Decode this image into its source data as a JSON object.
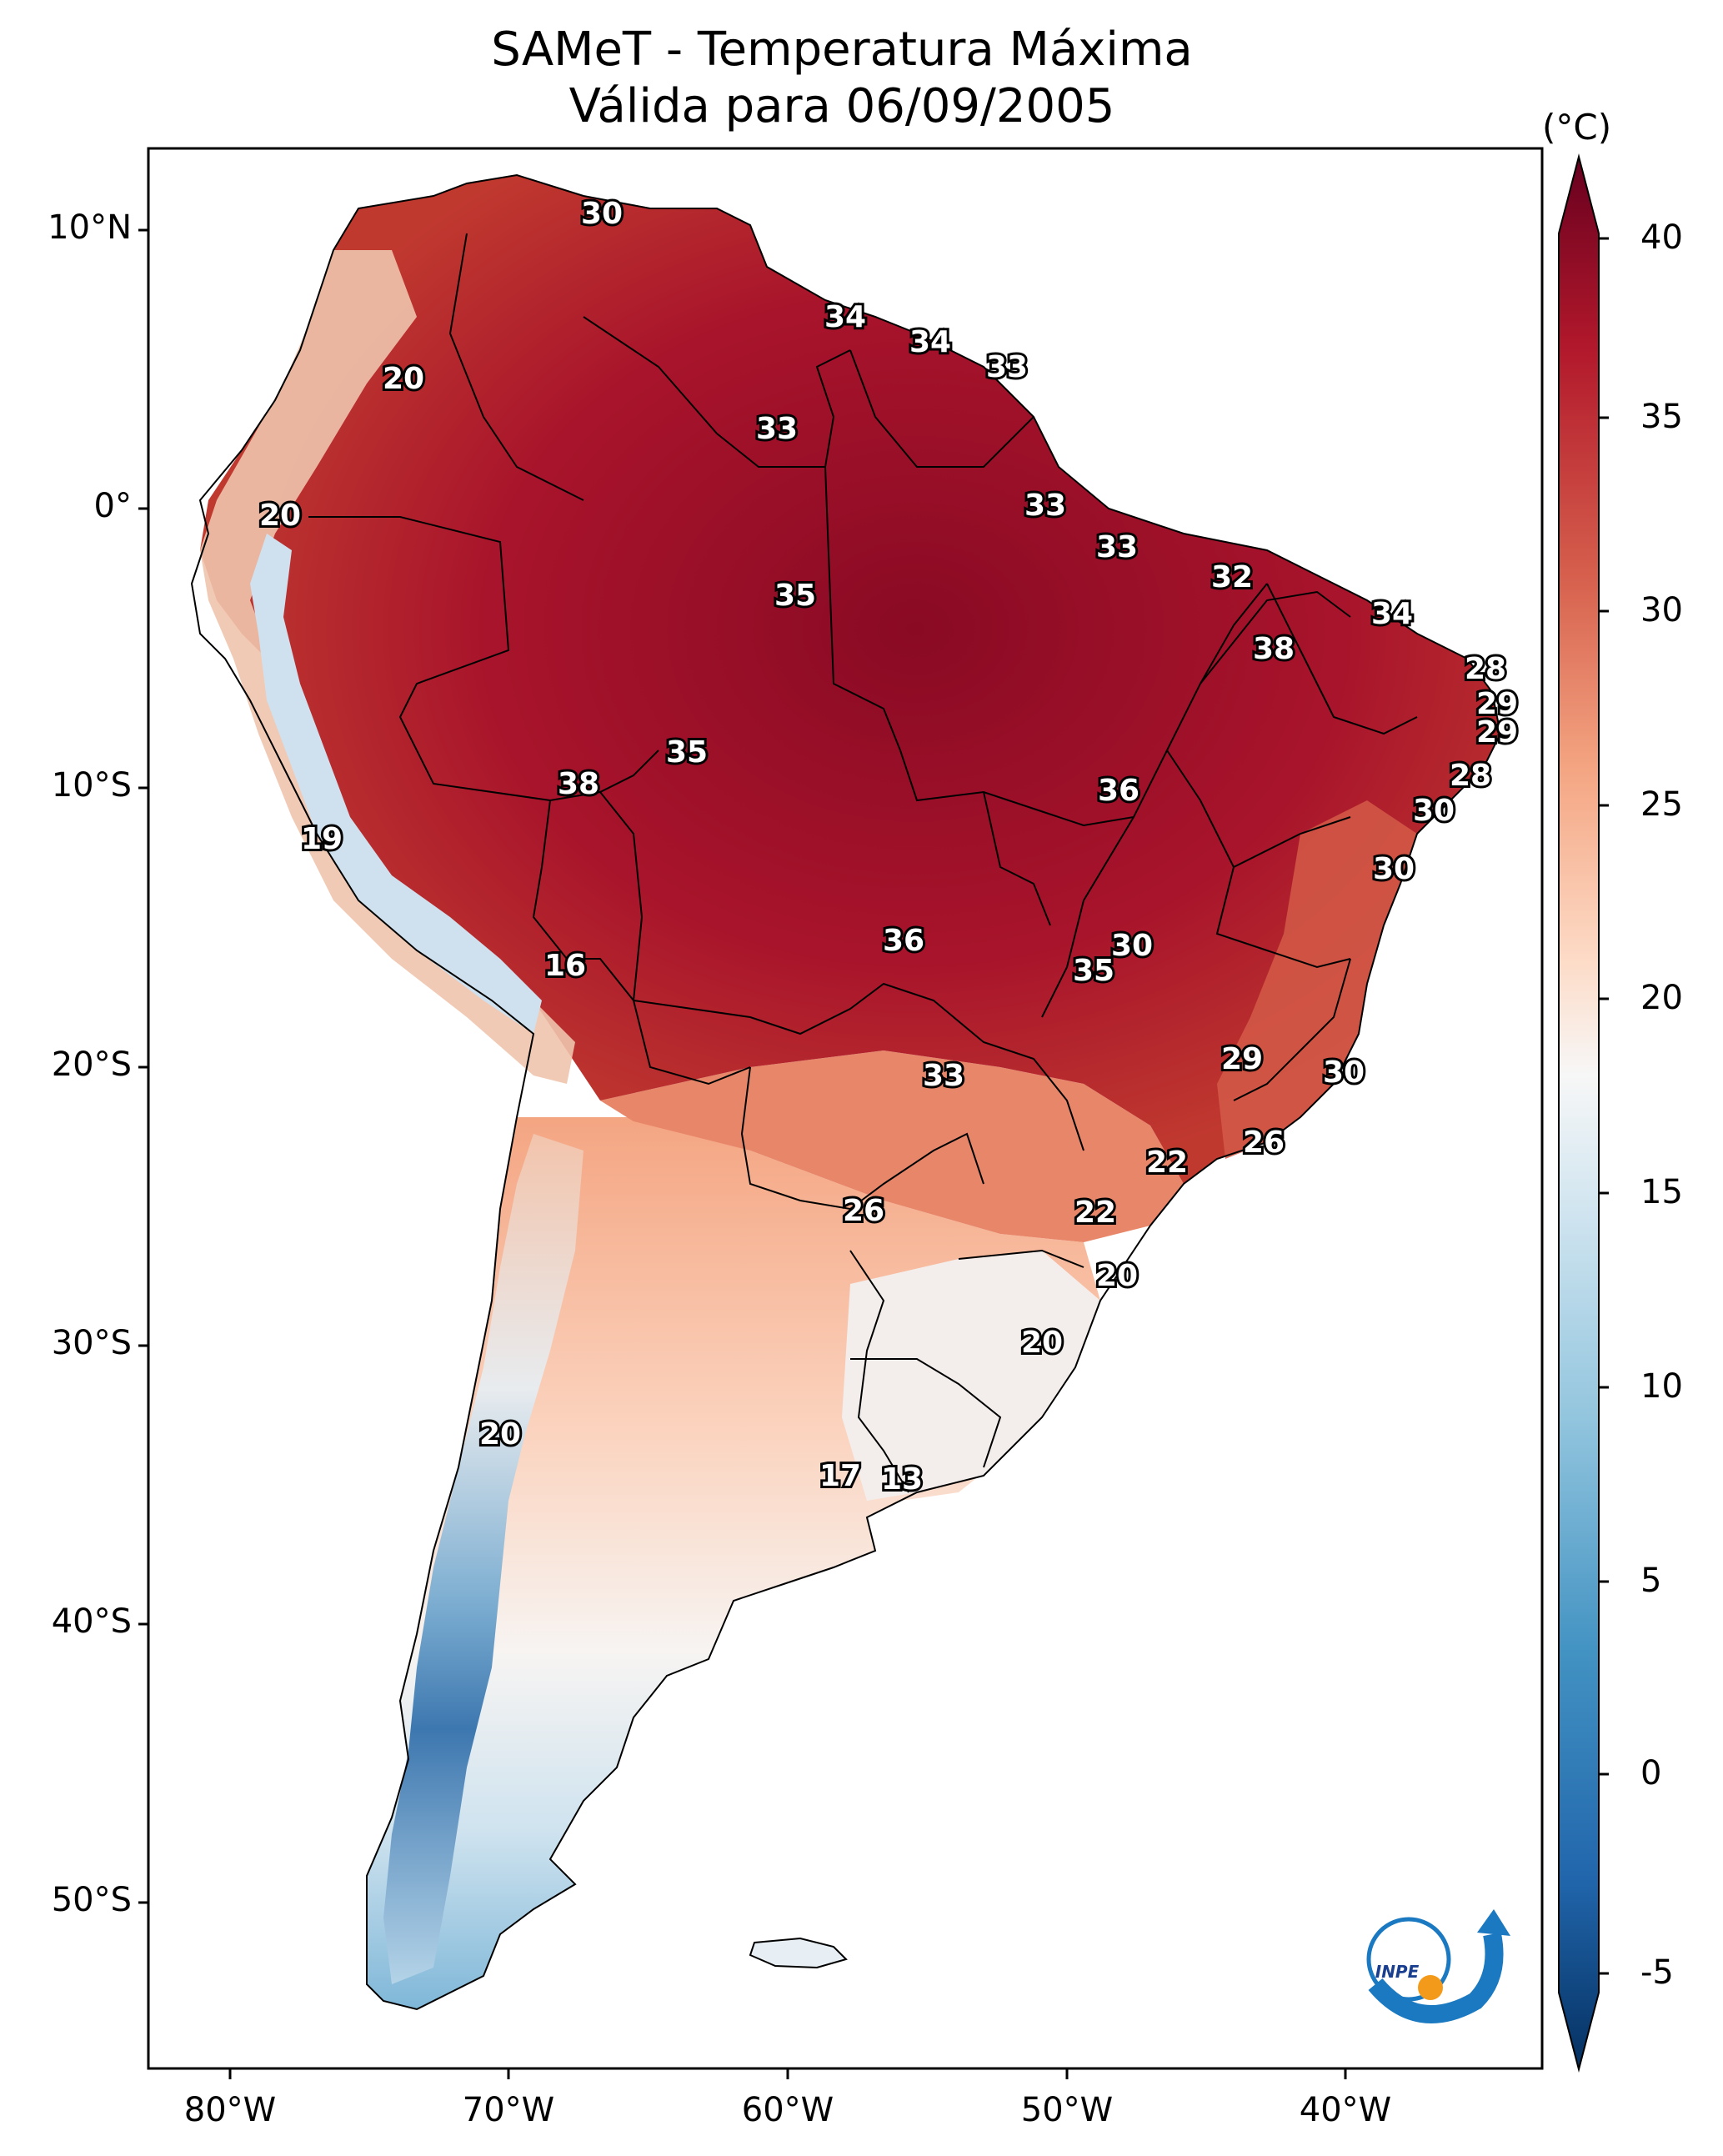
{
  "title": {
    "line1": "SAMeT - Temperatura Máxima",
    "line2": "Válida para 06/09/2005"
  },
  "colorbar": {
    "unit": "(°C)",
    "ticks": [
      "40",
      "35",
      "30",
      "25",
      "20",
      "15",
      "10",
      "5",
      "0",
      "-5"
    ],
    "colors": [
      "#67001f",
      "#b2182b",
      "#d6604d",
      "#f4a582",
      "#fddbc7",
      "#f7f7f7",
      "#d1e5f0",
      "#92c5de",
      "#4393c3",
      "#2166ac",
      "#053061"
    ]
  },
  "axes": {
    "lat_labels": [
      "10°N",
      "0°",
      "10°S",
      "20°S",
      "30°S",
      "40°S",
      "50°S"
    ],
    "lon_labels": [
      "80°W",
      "70°W",
      "60°W",
      "50°W",
      "40°W"
    ]
  },
  "isotherm_labels": [
    "30",
    "34",
    "34",
    "33",
    "20",
    "33",
    "20",
    "33",
    "33",
    "35",
    "32",
    "34",
    "38",
    "28",
    "29",
    "29",
    "35",
    "38",
    "36",
    "28",
    "30",
    "19",
    "30",
    "36",
    "30",
    "16",
    "35",
    "29",
    "30",
    "33",
    "26",
    "22",
    "26",
    "22",
    "20",
    "20",
    "20",
    "17",
    "13"
  ],
  "logo": {
    "text": "INPE"
  }
}
